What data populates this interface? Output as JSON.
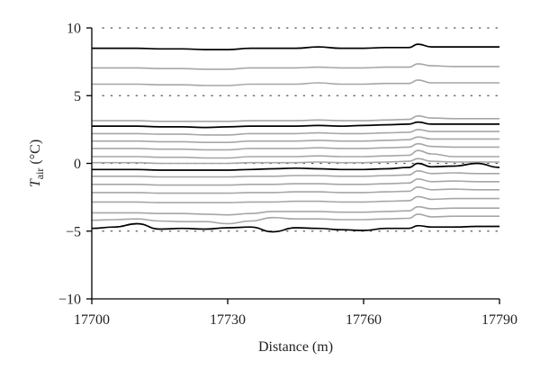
{
  "chart_data": {
    "type": "line",
    "title": "",
    "xlabel": "Distance (m)",
    "ylabel": {
      "symbol": "T",
      "subscript": "air",
      "unit": " (°C)"
    },
    "xlim": [
      17700,
      17790
    ],
    "ylim": [
      -10,
      10
    ],
    "xticks": [
      17700,
      17730,
      17760,
      17790
    ],
    "yticks": [
      10,
      5,
      0,
      -5,
      -10
    ],
    "xtick_labels": [
      "17700",
      "17730",
      "17760",
      "17790"
    ],
    "ytick_labels": [
      "10",
      "5",
      "0",
      "−5",
      "−10"
    ],
    "reference_lines": [
      10,
      5,
      0,
      -5
    ],
    "reference_line_style": "dotted",
    "grid": false,
    "legend": "none",
    "colors": {
      "dark": "#000000",
      "light": "#a6a6a6",
      "axis": "#000000",
      "reference": "#555555",
      "text": "#222222"
    },
    "x": [
      17700,
      17705,
      17710,
      17715,
      17720,
      17725,
      17730,
      17735,
      17740,
      17745,
      17750,
      17755,
      17760,
      17765,
      17770,
      17772,
      17775,
      17780,
      17785,
      17790
    ],
    "series": [
      {
        "style": "dark",
        "values": [
          8.5,
          8.5,
          8.5,
          8.45,
          8.45,
          8.4,
          8.4,
          8.5,
          8.5,
          8.5,
          8.6,
          8.5,
          8.5,
          8.55,
          8.55,
          8.8,
          8.6,
          8.6,
          8.6,
          8.6
        ]
      },
      {
        "style": "light",
        "values": [
          7.05,
          7.05,
          7.05,
          7.0,
          7.0,
          6.95,
          6.95,
          7.05,
          7.05,
          7.05,
          7.1,
          7.05,
          7.05,
          7.1,
          7.1,
          7.35,
          7.2,
          7.15,
          7.15,
          7.15
        ]
      },
      {
        "style": "light",
        "values": [
          5.85,
          5.85,
          5.85,
          5.8,
          5.8,
          5.75,
          5.75,
          5.85,
          5.85,
          5.85,
          5.95,
          5.85,
          5.85,
          5.9,
          5.9,
          6.15,
          5.95,
          5.95,
          5.95,
          5.95
        ]
      },
      {
        "style": "light",
        "values": [
          3.15,
          3.15,
          3.15,
          3.1,
          3.1,
          3.1,
          3.1,
          3.15,
          3.15,
          3.15,
          3.2,
          3.15,
          3.15,
          3.2,
          3.25,
          3.5,
          3.35,
          3.3,
          3.3,
          3.3
        ]
      },
      {
        "style": "dark",
        "values": [
          2.75,
          2.75,
          2.75,
          2.7,
          2.7,
          2.65,
          2.7,
          2.75,
          2.75,
          2.75,
          2.8,
          2.75,
          2.8,
          2.85,
          2.9,
          3.05,
          2.9,
          2.9,
          2.9,
          2.9
        ]
      },
      {
        "style": "light",
        "values": [
          2.2,
          2.2,
          2.2,
          2.15,
          2.15,
          2.1,
          2.1,
          2.2,
          2.2,
          2.2,
          2.25,
          2.2,
          2.2,
          2.25,
          2.3,
          2.5,
          2.35,
          2.35,
          2.35,
          2.35
        ]
      },
      {
        "style": "light",
        "values": [
          1.65,
          1.65,
          1.65,
          1.6,
          1.6,
          1.55,
          1.55,
          1.65,
          1.65,
          1.65,
          1.7,
          1.65,
          1.65,
          1.7,
          1.75,
          1.95,
          1.8,
          1.8,
          1.8,
          1.8
        ]
      },
      {
        "style": "light",
        "values": [
          1.1,
          1.1,
          1.1,
          1.05,
          1.05,
          1.0,
          1.0,
          1.1,
          1.1,
          1.1,
          1.15,
          1.1,
          1.1,
          1.15,
          1.2,
          1.45,
          1.25,
          1.2,
          1.2,
          1.2
        ]
      },
      {
        "style": "light",
        "values": [
          0.5,
          0.5,
          0.5,
          0.45,
          0.45,
          0.4,
          0.4,
          0.5,
          0.5,
          0.5,
          0.55,
          0.5,
          0.5,
          0.55,
          0.6,
          0.95,
          0.7,
          0.5,
          0.5,
          0.5
        ]
      },
      {
        "style": "light",
        "values": [
          0.05,
          0.05,
          0.05,
          0.0,
          0.0,
          0.0,
          0.0,
          0.05,
          0.05,
          0.05,
          0.1,
          0.05,
          0.05,
          0.1,
          0.15,
          0.35,
          0.15,
          0.1,
          0.1,
          0.1
        ]
      },
      {
        "style": "dark",
        "values": [
          -0.45,
          -0.45,
          -0.45,
          -0.5,
          -0.5,
          -0.5,
          -0.5,
          -0.45,
          -0.4,
          -0.35,
          -0.4,
          -0.45,
          -0.45,
          -0.4,
          -0.3,
          0.0,
          -0.25,
          -0.2,
          0.0,
          -0.3
        ]
      },
      {
        "style": "light",
        "values": [
          -0.95,
          -0.95,
          -0.95,
          -1.0,
          -1.0,
          -1.0,
          -1.0,
          -0.95,
          -0.95,
          -0.9,
          -0.9,
          -0.95,
          -0.95,
          -0.9,
          -0.85,
          -0.55,
          -0.75,
          -0.7,
          -0.75,
          -0.75
        ]
      },
      {
        "style": "light",
        "values": [
          -1.55,
          -1.55,
          -1.55,
          -1.6,
          -1.6,
          -1.6,
          -1.6,
          -1.55,
          -1.55,
          -1.5,
          -1.5,
          -1.55,
          -1.55,
          -1.5,
          -1.45,
          -1.15,
          -1.35,
          -1.3,
          -1.35,
          -1.35
        ]
      },
      {
        "style": "light",
        "values": [
          -2.15,
          -2.15,
          -2.15,
          -2.2,
          -2.2,
          -2.2,
          -2.2,
          -2.15,
          -2.15,
          -2.1,
          -2.1,
          -2.15,
          -2.15,
          -2.1,
          -2.05,
          -1.75,
          -1.95,
          -1.9,
          -1.95,
          -1.95
        ]
      },
      {
        "style": "light",
        "values": [
          -2.85,
          -2.85,
          -2.85,
          -2.9,
          -2.9,
          -2.9,
          -2.9,
          -2.85,
          -2.85,
          -2.8,
          -2.8,
          -2.85,
          -2.85,
          -2.8,
          -2.75,
          -2.45,
          -2.65,
          -2.6,
          -2.6,
          -2.6
        ]
      },
      {
        "style": "light",
        "values": [
          -3.65,
          -3.65,
          -3.65,
          -3.7,
          -3.7,
          -3.75,
          -3.8,
          -3.7,
          -3.55,
          -3.55,
          -3.55,
          -3.6,
          -3.6,
          -3.55,
          -3.5,
          -3.2,
          -3.35,
          -3.3,
          -3.3,
          -3.3
        ]
      },
      {
        "style": "light",
        "values": [
          -4.2,
          -4.15,
          -4.1,
          -4.25,
          -4.3,
          -4.3,
          -4.45,
          -4.25,
          -4.0,
          -4.1,
          -4.1,
          -4.15,
          -4.15,
          -4.1,
          -4.05,
          -3.75,
          -3.95,
          -3.9,
          -3.9,
          -3.9
        ]
      },
      {
        "style": "dark",
        "values": [
          -4.8,
          -4.7,
          -4.45,
          -4.85,
          -4.8,
          -4.85,
          -4.75,
          -4.7,
          -5.05,
          -4.75,
          -4.8,
          -4.9,
          -4.95,
          -4.8,
          -4.8,
          -4.6,
          -4.7,
          -4.7,
          -4.65,
          -4.65
        ]
      }
    ]
  }
}
